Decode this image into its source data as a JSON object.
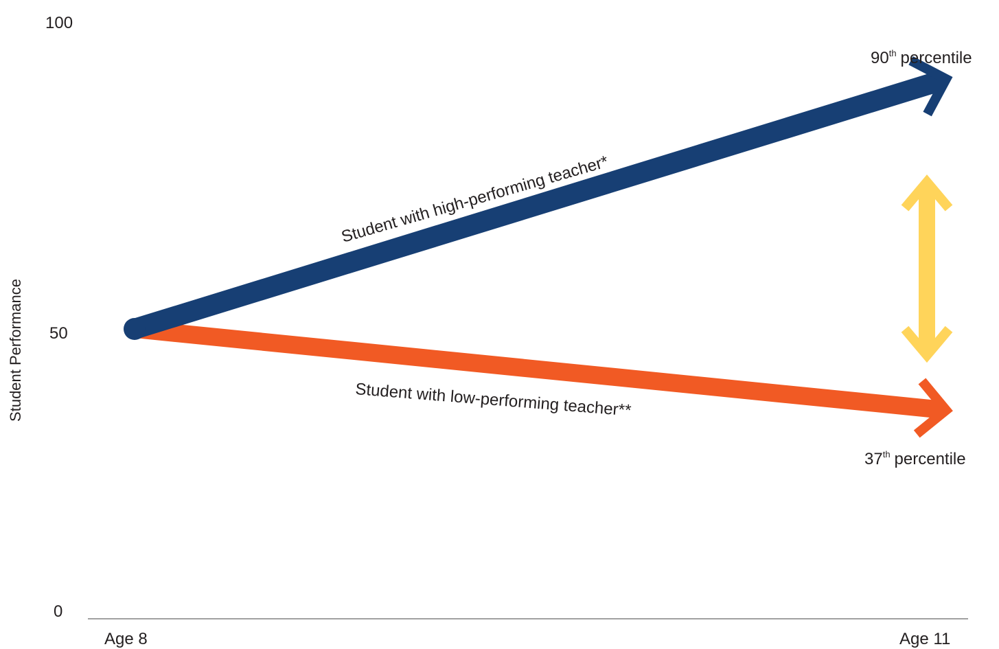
{
  "chart_data": {
    "type": "line",
    "ylabel": "Student Performance",
    "xlabel": "",
    "x": [
      "Age 8",
      "Age 11"
    ],
    "ylim": [
      0,
      100
    ],
    "yticks": [
      "0",
      "50",
      "100"
    ],
    "grid": false,
    "series": [
      {
        "name": "Student with high-performing teacher*",
        "values": [
          50,
          90
        ],
        "color": "#173f74",
        "end_label": {
          "number": "90",
          "sup": "th",
          "text": "percentile"
        }
      },
      {
        "name": "Student with low-performing teacher**",
        "values": [
          50,
          37
        ],
        "color": "#f15a24",
        "end_label": {
          "number": "37",
          "sup": "th",
          "text": "percentile"
        }
      }
    ],
    "gap_arrow_color": "#ffd45a",
    "axis_color": "#808080"
  }
}
